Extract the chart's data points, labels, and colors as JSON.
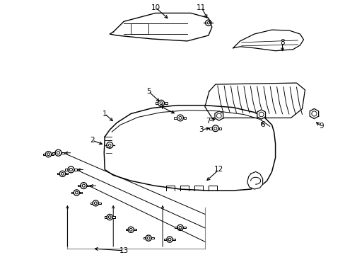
{
  "bg_color": "#ffffff",
  "line_color": "#000000",
  "figsize": [
    4.89,
    3.6
  ],
  "dpi": 100,
  "label_fontsize": 7.5
}
